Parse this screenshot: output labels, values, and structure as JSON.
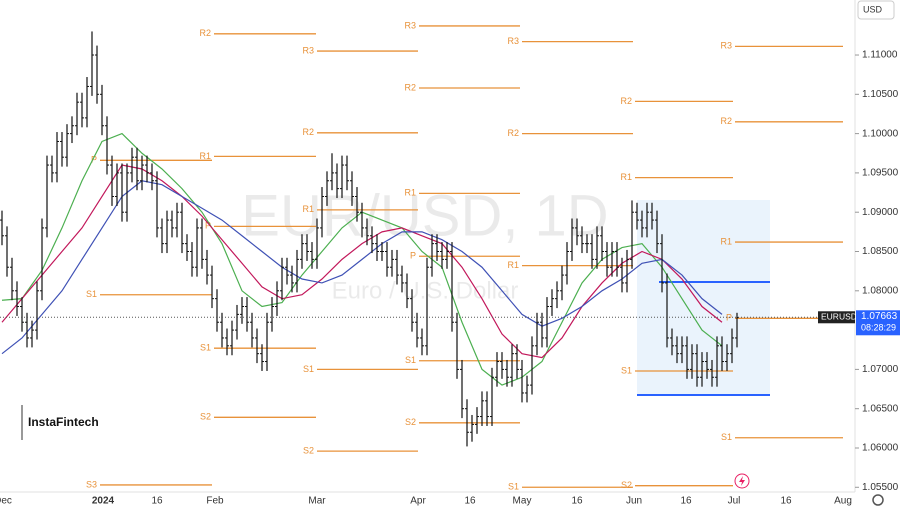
{
  "chart_data": {
    "type": "ohlc",
    "title": "EUR/USD, 1D",
    "subtitle": "Euro / U.S. Dollar",
    "currency": "USD",
    "brand": "InstaFintech",
    "symbol": "EURUSD",
    "last_price": 1.07663,
    "countdown": "08:28:29",
    "ylim": [
      1.0544,
      1.117
    ],
    "yticks": [
      {
        "value": 1.11,
        "label": "1.11000"
      },
      {
        "value": 1.105,
        "label": "1.10500"
      },
      {
        "value": 1.1,
        "label": "1.10000"
      },
      {
        "value": 1.095,
        "label": "1.09500"
      },
      {
        "value": 1.09,
        "label": "1.09000"
      },
      {
        "value": 1.085,
        "label": "1.08500"
      },
      {
        "value": 1.08,
        "label": "1.08000"
      },
      {
        "value": 1.07,
        "label": "1.07000"
      },
      {
        "value": 1.065,
        "label": "1.06500"
      },
      {
        "value": 1.06,
        "label": "1.06000"
      },
      {
        "value": 1.055,
        "label": "1.05500"
      }
    ],
    "categories": [
      "Dec",
      "2024",
      "16",
      "Feb",
      "Mar",
      "Apr",
      "16",
      "May",
      "16",
      "Jun",
      "16",
      "Jul",
      "16",
      "Aug"
    ],
    "bar_color": "#111111",
    "bars": [
      [
        1.089,
        1.0902,
        1.0858,
        1.087
      ],
      [
        1.087,
        1.0882,
        1.0818,
        1.083
      ],
      [
        1.083,
        1.0842,
        1.0788,
        1.08
      ],
      [
        1.08,
        1.0812,
        1.0768,
        1.078
      ],
      [
        1.078,
        1.0792,
        1.0748,
        1.076
      ],
      [
        1.076,
        1.0772,
        1.0728,
        1.074
      ],
      [
        1.074,
        1.0762,
        1.0728,
        1.075
      ],
      [
        1.075,
        1.0812,
        1.0738,
        1.08
      ],
      [
        1.08,
        1.0892,
        1.0788,
        1.088
      ],
      [
        1.088,
        1.0972,
        1.0868,
        1.096
      ],
      [
        1.096,
        1.0972,
        1.0938,
        1.095
      ],
      [
        1.095,
        1.1002,
        1.0938,
        1.099
      ],
      [
        1.099,
        1.1002,
        1.0958,
        1.097
      ],
      [
        1.097,
        1.1012,
        1.0958,
        1.1
      ],
      [
        1.1,
        1.1022,
        1.0988,
        1.101
      ],
      [
        1.101,
        1.1052,
        1.0998,
        1.104
      ],
      [
        1.104,
        1.1052,
        1.1008,
        1.102
      ],
      [
        1.102,
        1.1072,
        1.1008,
        1.106
      ],
      [
        1.106,
        1.113,
        1.1048,
        1.11
      ],
      [
        1.11,
        1.1112,
        1.1038,
        1.105
      ],
      [
        1.105,
        1.1062,
        1.0998,
        1.101
      ],
      [
        1.101,
        1.1022,
        1.0948,
        1.096
      ],
      [
        1.096,
        1.0972,
        1.0908,
        1.092
      ],
      [
        1.092,
        1.0962,
        1.0908,
        1.095
      ],
      [
        1.095,
        1.0962,
        1.0888,
        1.09
      ],
      [
        1.09,
        1.0962,
        1.0888,
        1.095
      ],
      [
        1.095,
        1.0982,
        1.0938,
        1.097
      ],
      [
        1.097,
        1.0982,
        1.0928,
        1.094
      ],
      [
        1.094,
        1.0972,
        1.0928,
        1.096
      ],
      [
        1.096,
        1.0972,
        1.0938,
        1.095
      ],
      [
        1.095,
        1.0962,
        1.0928,
        1.094
      ],
      [
        1.094,
        1.0952,
        1.0868,
        1.088
      ],
      [
        1.088,
        1.0892,
        1.0848,
        1.086
      ],
      [
        1.086,
        1.0902,
        1.0848,
        1.089
      ],
      [
        1.089,
        1.0902,
        1.0868,
        1.088
      ],
      [
        1.088,
        1.0912,
        1.0868,
        1.09
      ],
      [
        1.09,
        1.0912,
        1.0848,
        1.086
      ],
      [
        1.086,
        1.0872,
        1.0838,
        1.085
      ],
      [
        1.085,
        1.0862,
        1.0818,
        1.083
      ],
      [
        1.083,
        1.0892,
        1.0818,
        1.088
      ],
      [
        1.088,
        1.0892,
        1.0828,
        1.084
      ],
      [
        1.084,
        1.0852,
        1.0808,
        1.082
      ],
      [
        1.082,
        1.0832,
        1.0778,
        1.079
      ],
      [
        1.079,
        1.0802,
        1.0748,
        1.076
      ],
      [
        1.076,
        1.0772,
        1.0728,
        1.074
      ],
      [
        1.074,
        1.0752,
        1.0718,
        1.073
      ],
      [
        1.073,
        1.0762,
        1.0718,
        1.075
      ],
      [
        1.075,
        1.0782,
        1.0738,
        1.077
      ],
      [
        1.077,
        1.0792,
        1.0758,
        1.078
      ],
      [
        1.078,
        1.0792,
        1.0748,
        1.076
      ],
      [
        1.076,
        1.0772,
        1.0728,
        1.074
      ],
      [
        1.074,
        1.0752,
        1.0708,
        1.072
      ],
      [
        1.072,
        1.0732,
        1.0698,
        1.071
      ],
      [
        1.071,
        1.0772,
        1.0698,
        1.076
      ],
      [
        1.076,
        1.0792,
        1.0748,
        1.078
      ],
      [
        1.078,
        1.0812,
        1.0768,
        1.08
      ],
      [
        1.08,
        1.0842,
        1.0788,
        1.083
      ],
      [
        1.083,
        1.0842,
        1.0808,
        1.082
      ],
      [
        1.082,
        1.0832,
        1.0798,
        1.081
      ],
      [
        1.081,
        1.0852,
        1.0798,
        1.084
      ],
      [
        1.084,
        1.0872,
        1.0828,
        1.086
      ],
      [
        1.086,
        1.0872,
        1.0838,
        1.085
      ],
      [
        1.085,
        1.0862,
        1.0828,
        1.084
      ],
      [
        1.084,
        1.0892,
        1.0828,
        1.088
      ],
      [
        1.088,
        1.0932,
        1.0868,
        1.092
      ],
      [
        1.092,
        1.0952,
        1.0908,
        1.094
      ],
      [
        1.094,
        1.0975,
        1.0928,
        1.095
      ],
      [
        1.095,
        1.0962,
        1.0918,
        1.093
      ],
      [
        1.093,
        1.0972,
        1.0918,
        1.096
      ],
      [
        1.096,
        1.0972,
        1.0928,
        1.094
      ],
      [
        1.094,
        1.0952,
        1.0908,
        1.092
      ],
      [
        1.092,
        1.0932,
        1.0888,
        1.09
      ],
      [
        1.09,
        1.0912,
        1.0868,
        1.088
      ],
      [
        1.088,
        1.0892,
        1.0858,
        1.087
      ],
      [
        1.087,
        1.0882,
        1.0848,
        1.086
      ],
      [
        1.086,
        1.0872,
        1.0838,
        1.085
      ],
      [
        1.085,
        1.0862,
        1.0838,
        1.085
      ],
      [
        1.085,
        1.0862,
        1.0818,
        1.083
      ],
      [
        1.083,
        1.0852,
        1.0818,
        1.084
      ],
      [
        1.084,
        1.0852,
        1.0808,
        1.082
      ],
      [
        1.082,
        1.0832,
        1.0798,
        1.081
      ],
      [
        1.081,
        1.0822,
        1.0778,
        1.079
      ],
      [
        1.079,
        1.0802,
        1.0748,
        1.076
      ],
      [
        1.076,
        1.0772,
        1.0728,
        1.074
      ],
      [
        1.074,
        1.0752,
        1.0718,
        1.073
      ],
      [
        1.073,
        1.0842,
        1.0718,
        1.083
      ],
      [
        1.083,
        1.0872,
        1.0818,
        1.086
      ],
      [
        1.086,
        1.0872,
        1.0838,
        1.085
      ],
      [
        1.085,
        1.0862,
        1.0828,
        1.084
      ],
      [
        1.084,
        1.0862,
        1.0828,
        1.085
      ],
      [
        1.085,
        1.0862,
        1.0748,
        1.076
      ],
      [
        1.076,
        1.0772,
        1.0688,
        1.07
      ],
      [
        1.07,
        1.0712,
        1.0638,
        1.065
      ],
      [
        1.065,
        1.0662,
        1.0602,
        1.062
      ],
      [
        1.062,
        1.0642,
        1.0608,
        1.063
      ],
      [
        1.063,
        1.0652,
        1.0618,
        1.064
      ],
      [
        1.064,
        1.0672,
        1.0628,
        1.066
      ],
      [
        1.066,
        1.0672,
        1.0628,
        1.064
      ],
      [
        1.064,
        1.0702,
        1.0628,
        1.069
      ],
      [
        1.069,
        1.0722,
        1.0678,
        1.071
      ],
      [
        1.071,
        1.0722,
        1.0688,
        1.07
      ],
      [
        1.07,
        1.0712,
        1.0678,
        1.069
      ],
      [
        1.069,
        1.0732,
        1.0678,
        1.072
      ],
      [
        1.072,
        1.0732,
        1.0688,
        1.07
      ],
      [
        1.07,
        1.0712,
        1.0658,
        1.067
      ],
      [
        1.067,
        1.0692,
        1.0658,
        1.068
      ],
      [
        1.068,
        1.0742,
        1.0668,
        1.073
      ],
      [
        1.073,
        1.0772,
        1.0718,
        1.076
      ],
      [
        1.076,
        1.0772,
        1.0728,
        1.074
      ],
      [
        1.074,
        1.0792,
        1.0728,
        1.078
      ],
      [
        1.078,
        1.0802,
        1.0768,
        1.079
      ],
      [
        1.079,
        1.0812,
        1.0778,
        1.08
      ],
      [
        1.08,
        1.0832,
        1.0788,
        1.082
      ],
      [
        1.082,
        1.0862,
        1.0808,
        1.085
      ],
      [
        1.085,
        1.0892,
        1.0838,
        1.088
      ],
      [
        1.088,
        1.0892,
        1.0858,
        1.087
      ],
      [
        1.087,
        1.0882,
        1.0848,
        1.086
      ],
      [
        1.086,
        1.0872,
        1.0848,
        1.086
      ],
      [
        1.086,
        1.0872,
        1.0828,
        1.084
      ],
      [
        1.084,
        1.0882,
        1.0828,
        1.087
      ],
      [
        1.087,
        1.0882,
        1.0838,
        1.085
      ],
      [
        1.085,
        1.0862,
        1.0818,
        1.083
      ],
      [
        1.083,
        1.0862,
        1.0818,
        1.085
      ],
      [
        1.085,
        1.0862,
        1.0818,
        1.083
      ],
      [
        1.083,
        1.0842,
        1.0798,
        1.081
      ],
      [
        1.081,
        1.0852,
        1.0798,
        1.084
      ],
      [
        1.084,
        1.0915,
        1.0828,
        1.09
      ],
      [
        1.09,
        1.0912,
        1.0878,
        1.089
      ],
      [
        1.089,
        1.0902,
        1.0868,
        1.088
      ],
      [
        1.088,
        1.0912,
        1.0868,
        1.09
      ],
      [
        1.09,
        1.0912,
        1.0878,
        1.089
      ],
      [
        1.089,
        1.0902,
        1.0848,
        1.086
      ],
      [
        1.086,
        1.0872,
        1.0798,
        1.081
      ],
      [
        1.081,
        1.0822,
        1.0728,
        1.074
      ],
      [
        1.074,
        1.0752,
        1.0718,
        1.073
      ],
      [
        1.073,
        1.0742,
        1.0708,
        1.072
      ],
      [
        1.072,
        1.0742,
        1.0708,
        1.073
      ],
      [
        1.073,
        1.0742,
        1.0688,
        1.07
      ],
      [
        1.07,
        1.0732,
        1.0688,
        1.072
      ],
      [
        1.072,
        1.0732,
        1.0678,
        1.069
      ],
      [
        1.069,
        1.0722,
        1.0678,
        1.071
      ],
      [
        1.071,
        1.0722,
        1.0688,
        1.07
      ],
      [
        1.07,
        1.0712,
        1.0678,
        1.069
      ],
      [
        1.069,
        1.0742,
        1.0678,
        1.073
      ],
      [
        1.073,
        1.0742,
        1.0698,
        1.071
      ],
      [
        1.071,
        1.0732,
        1.0698,
        1.072
      ],
      [
        1.072,
        1.0752,
        1.0708,
        1.074
      ],
      [
        1.074,
        1.0772,
        1.0728,
        1.0766
      ]
    ],
    "moving_averages": [
      {
        "color": "#4caf50",
        "values": [
          1.0788,
          1.079,
          1.0826,
          1.088,
          1.094,
          1.099,
          1.1,
          1.0975,
          1.0955,
          1.093,
          1.09,
          1.086,
          1.08,
          1.078,
          1.0785,
          1.082,
          1.085,
          1.088,
          1.09,
          1.089,
          1.088,
          1.085,
          1.083,
          1.076,
          1.07,
          1.068,
          1.069,
          1.071,
          1.076,
          1.081,
          1.084,
          1.0855,
          1.086,
          1.083,
          1.079,
          1.075,
          1.073
        ]
      },
      {
        "color": "#c2185b",
        "values": [
          1.076,
          1.079,
          1.082,
          1.085,
          1.088,
          1.092,
          1.096,
          1.0955,
          1.094,
          1.092,
          1.0895,
          1.0865,
          1.0835,
          1.0805,
          1.079,
          1.0795,
          1.0815,
          1.084,
          1.086,
          1.0875,
          1.088,
          1.087,
          1.086,
          1.083,
          1.079,
          1.0745,
          1.072,
          1.0715,
          1.074,
          1.078,
          1.081,
          1.0835,
          1.085,
          1.084,
          1.0815,
          1.078,
          1.076
        ]
      },
      {
        "color": "#3f51b5",
        "values": [
          1.072,
          1.074,
          1.077,
          1.08,
          1.084,
          1.088,
          1.092,
          1.094,
          1.0935,
          1.092,
          1.0905,
          1.089,
          1.087,
          1.085,
          1.083,
          1.0815,
          1.081,
          1.082,
          1.084,
          1.086,
          1.0875,
          1.0875,
          1.0865,
          1.085,
          1.083,
          1.08,
          1.077,
          1.0755,
          1.0765,
          1.078,
          1.08,
          1.0815,
          1.0835,
          1.084,
          1.082,
          1.079,
          1.077
        ]
      }
    ],
    "pivot_color": "#e8923a",
    "pivots": [
      {
        "levels": [
          {
            "name": "P",
            "value": 1.0966
          },
          {
            "name": "S1",
            "value": 1.0795
          },
          {
            "name": "S3",
            "value": 1.0553
          }
        ]
      },
      {
        "levels": [
          {
            "name": "R2",
            "value": 1.1127
          },
          {
            "name": "R1",
            "value": 1.0971
          },
          {
            "name": "P",
            "value": 1.0882
          },
          {
            "name": "S1",
            "value": 1.0727
          },
          {
            "name": "S2",
            "value": 1.0639
          }
        ]
      },
      {
        "levels": [
          {
            "name": "R3",
            "value": 1.1105
          },
          {
            "name": "R2",
            "value": 1.1001
          },
          {
            "name": "R1",
            "value": 1.0903
          },
          {
            "name": "S1",
            "value": 1.07
          },
          {
            "name": "S2",
            "value": 1.0596
          }
        ]
      },
      {
        "levels": [
          {
            "name": "R3",
            "value": 1.1137
          },
          {
            "name": "R2",
            "value": 1.1058
          },
          {
            "name": "R1",
            "value": 1.0924
          },
          {
            "name": "P",
            "value": 1.0844
          },
          {
            "name": "S1",
            "value": 1.0711
          },
          {
            "name": "S2",
            "value": 1.0632
          }
        ]
      },
      {
        "levels": [
          {
            "name": "R3",
            "value": 1.1117
          },
          {
            "name": "R2",
            "value": 1.1
          },
          {
            "name": "R1",
            "value": 1.0832
          },
          {
            "name": "S1",
            "value": 1.055
          }
        ]
      },
      {
        "levels": [
          {
            "name": "R2",
            "value": 1.1041
          },
          {
            "name": "R1",
            "value": 1.0944
          },
          {
            "name": "S1",
            "value": 1.0698
          },
          {
            "name": "S2",
            "value": 1.0552
          }
        ]
      },
      {
        "levels": [
          {
            "name": "R3",
            "value": 1.1111
          },
          {
            "name": "R2",
            "value": 1.1015
          },
          {
            "name": "R1",
            "value": 1.0862
          },
          {
            "name": "P",
            "value": 1.0765
          },
          {
            "name": "S1",
            "value": 1.0613
          }
        ]
      }
    ]
  }
}
